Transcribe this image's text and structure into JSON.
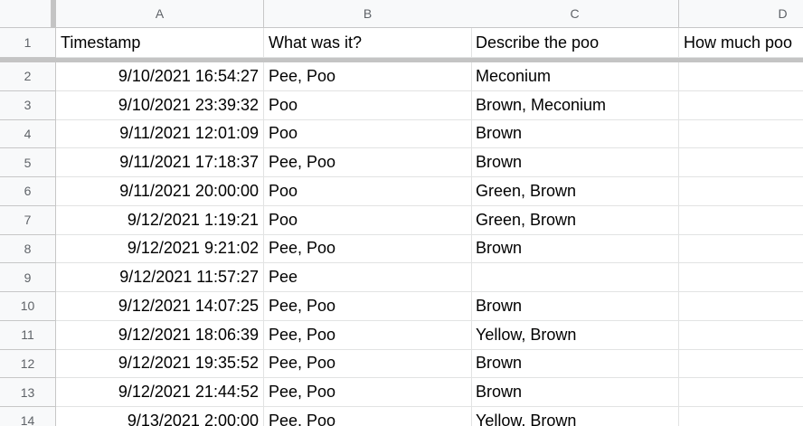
{
  "columns": [
    "A",
    "B",
    "C",
    "D"
  ],
  "header_row": {
    "number": 1,
    "cells": [
      "Timestamp",
      "What was it?",
      "Describe the poo",
      "How much poo"
    ]
  },
  "rows": [
    {
      "number": 2,
      "timestamp": "9/10/2021 16:54:27",
      "what": "Pee, Poo",
      "describe": "Meconium"
    },
    {
      "number": 3,
      "timestamp": "9/10/2021 23:39:32",
      "what": "Poo",
      "describe": "Brown, Meconium"
    },
    {
      "number": 4,
      "timestamp": "9/11/2021 12:01:09",
      "what": "Poo",
      "describe": "Brown"
    },
    {
      "number": 5,
      "timestamp": "9/11/2021 17:18:37",
      "what": "Pee, Poo",
      "describe": "Brown"
    },
    {
      "number": 6,
      "timestamp": "9/11/2021 20:00:00",
      "what": "Poo",
      "describe": "Green, Brown"
    },
    {
      "number": 7,
      "timestamp": "9/12/2021 1:19:21",
      "what": "Poo",
      "describe": "Green, Brown"
    },
    {
      "number": 8,
      "timestamp": "9/12/2021 9:21:02",
      "what": "Pee, Poo",
      "describe": "Brown"
    },
    {
      "number": 9,
      "timestamp": "9/12/2021 11:57:27",
      "what": "Pee"
    },
    {
      "number": 10,
      "timestamp": "9/12/2021 14:07:25",
      "what": "Pee, Poo",
      "describe": "Brown"
    },
    {
      "number": 11,
      "timestamp": "9/12/2021 18:06:39",
      "what": "Pee, Poo",
      "describe": "Yellow, Brown"
    },
    {
      "number": 12,
      "timestamp": "9/12/2021 19:35:52",
      "what": "Pee, Poo",
      "describe": "Brown"
    },
    {
      "number": 13,
      "timestamp": "9/12/2021 21:44:52",
      "what": "Pee, Poo",
      "describe": "Brown"
    },
    {
      "number": 14,
      "timestamp": "9/13/2021 2:00:00",
      "what": "Pee, Poo",
      "describe": "Yellow, Brown"
    }
  ]
}
